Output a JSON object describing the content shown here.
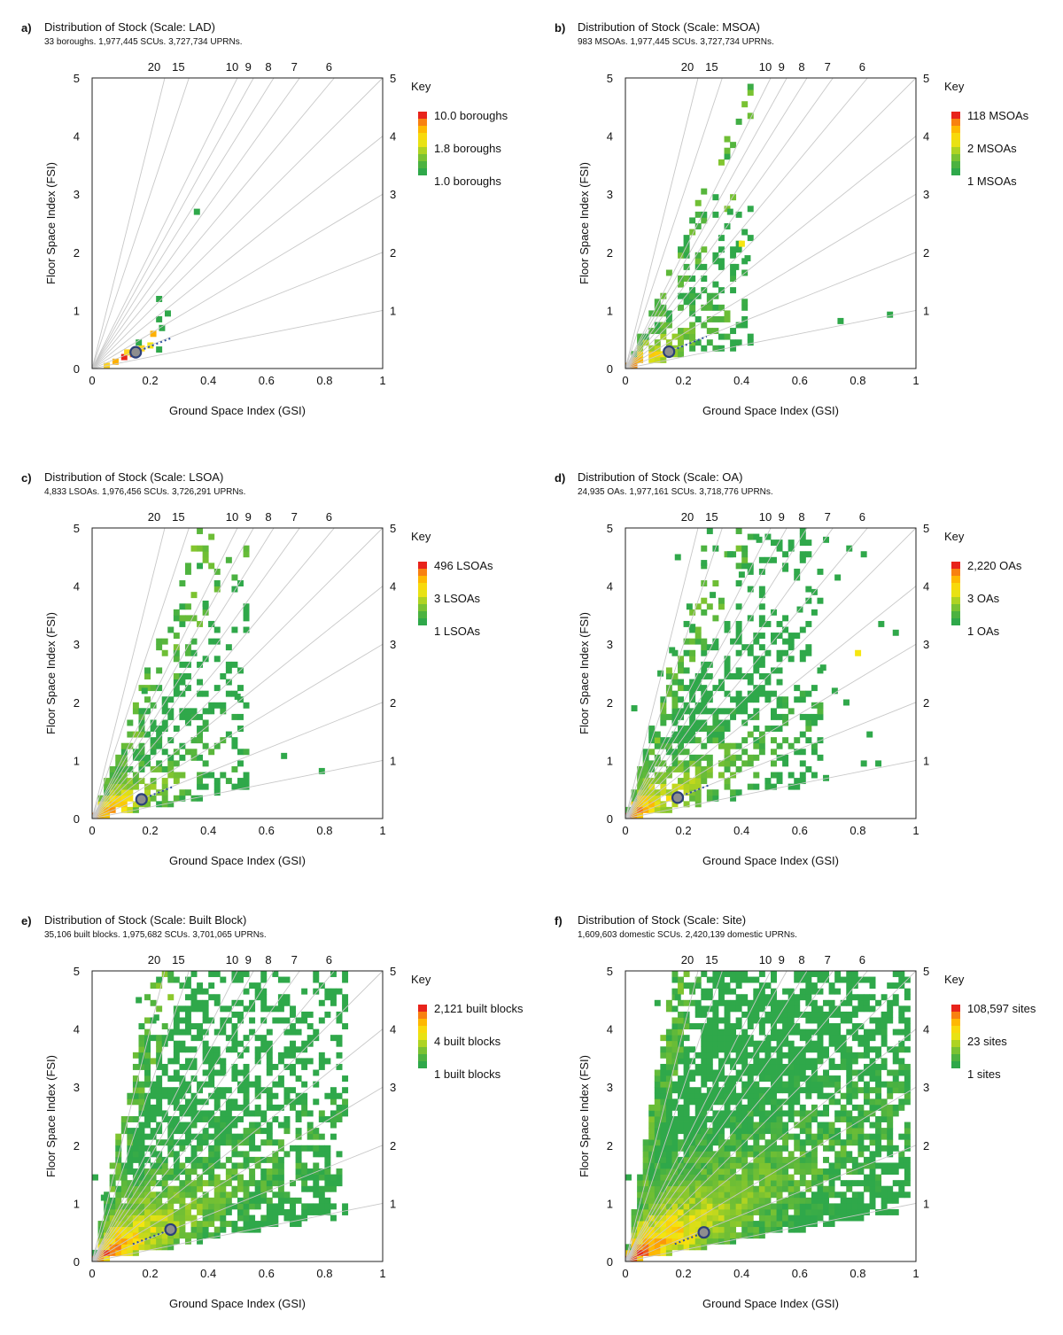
{
  "chart_data": [
    {
      "letter": "a)",
      "type": "heatmap",
      "title": "Distribution of Stock (Scale: LAD)",
      "subtitle": "33 boroughs. 1,977,445 SCUs. 3,727,734 UPRNs.",
      "xlabel": "Ground Space Index (GSI)",
      "ylabel": "Floor Space Index (FSI)",
      "xlim": [
        0,
        1
      ],
      "ylim": [
        0,
        5
      ],
      "xticks": [
        "0",
        "0.2",
        "0.4",
        "0.6",
        "0.8",
        "1"
      ],
      "yticks": [
        "0",
        "1",
        "2",
        "3",
        "4",
        "5"
      ],
      "right_ticks": [
        "1",
        "2",
        "3",
        "4",
        "5"
      ],
      "top_labels": [
        "20",
        "15",
        "10",
        "9",
        "8",
        "7",
        "6"
      ],
      "legend_title": "Key",
      "legend_labels": [
        "10.0 boroughs",
        "1.8 boroughs",
        "1.0 boroughs"
      ],
      "marker": {
        "x": 0.15,
        "y": 0.28
      },
      "trend": {
        "x0": 0.15,
        "y0": 0.28,
        "x1": 0.27,
        "y1": 0.52
      },
      "mass": {
        "angle": 0.2,
        "spread": 0.0,
        "nmax": 0.0,
        "decay": 0.0,
        "density": 0.0,
        "seed": 11
      },
      "cells": [
        [
          0.05,
          0.05,
          "#ffd320"
        ],
        [
          0.08,
          0.12,
          "#ffb000"
        ],
        [
          0.11,
          0.2,
          "#e8231b"
        ],
        [
          0.14,
          0.25,
          "#f46a1a"
        ],
        [
          0.12,
          0.28,
          "#ffd320"
        ],
        [
          0.17,
          0.35,
          "#ffd320"
        ],
        [
          0.2,
          0.4,
          "#f6e610"
        ],
        [
          0.16,
          0.45,
          "#2fa84a"
        ],
        [
          0.21,
          0.6,
          "#ffb000"
        ],
        [
          0.24,
          0.7,
          "#2fa84a"
        ],
        [
          0.26,
          0.95,
          "#2fa84a"
        ],
        [
          0.23,
          0.85,
          "#2fa84a"
        ],
        [
          0.23,
          1.2,
          "#2fa84a"
        ],
        [
          0.36,
          2.7,
          "#2fa84a"
        ],
        [
          0.23,
          0.33,
          "#2fa84a"
        ]
      ]
    },
    {
      "letter": "b)",
      "type": "heatmap",
      "title": "Distribution of Stock (Scale: MSOA)",
      "subtitle": "983 MSOAs. 1,977,445 SCUs. 3,727,734 UPRNs.",
      "xlabel": "Ground Space Index (GSI)",
      "ylabel": "Floor Space Index (FSI)",
      "xlim": [
        0,
        1
      ],
      "ylim": [
        0,
        5
      ],
      "xticks": [
        "0",
        "0.2",
        "0.4",
        "0.6",
        "0.8",
        "1"
      ],
      "yticks": [
        "0",
        "1",
        "2",
        "3",
        "4",
        "5"
      ],
      "right_ticks": [
        "1",
        "2",
        "3",
        "4",
        "5"
      ],
      "top_labels": [
        "20",
        "15",
        "10",
        "9",
        "8",
        "7",
        "6"
      ],
      "legend_title": "Key",
      "legend_labels": [
        "118 MSOAs",
        "2 MSOAs",
        "1 MSOAs"
      ],
      "marker": {
        "x": 0.15,
        "y": 0.29
      },
      "trend": {
        "x0": 0.15,
        "y0": 0.29,
        "x1": 0.28,
        "y1": 0.55
      },
      "mass": {
        "angle": 0.22,
        "spread": 0.7,
        "nmax": 0.42,
        "decay": 3.0,
        "density": 0.62,
        "seed": 23
      },
      "cells": [
        [
          0.36,
          2.7,
          "#2fa84a"
        ],
        [
          0.4,
          2.15,
          "#f6e610"
        ],
        [
          0.74,
          0.82,
          "#2fa84a"
        ],
        [
          0.91,
          0.93,
          "#2fa84a"
        ],
        [
          0.42,
          1.9,
          "#2fa84a"
        ],
        [
          0.38,
          1.75,
          "#2fa84a"
        ]
      ]
    },
    {
      "letter": "c)",
      "type": "heatmap",
      "title": "Distribution of Stock (Scale: LSOA)",
      "subtitle": "4,833 LSOAs. 1,976,456 SCUs. 3,726,291 UPRNs.",
      "xlabel": "Ground Space Index (GSI)",
      "ylabel": "Floor Space Index (FSI)",
      "xlim": [
        0,
        1
      ],
      "ylim": [
        0,
        5
      ],
      "xticks": [
        "0",
        "0.2",
        "0.4",
        "0.6",
        "0.8",
        "1"
      ],
      "yticks": [
        "0",
        "1",
        "2",
        "3",
        "4",
        "5"
      ],
      "right_ticks": [
        "1",
        "2",
        "3",
        "4",
        "5"
      ],
      "top_labels": [
        "20",
        "15",
        "10",
        "9",
        "8",
        "7",
        "6"
      ],
      "legend_title": "Key",
      "legend_labels": [
        "496 LSOAs",
        "3 LSOAs",
        "1 LSOAs"
      ],
      "marker": {
        "x": 0.17,
        "y": 0.33
      },
      "trend": {
        "x0": 0.17,
        "y0": 0.33,
        "x1": 0.28,
        "y1": 0.55
      },
      "mass": {
        "angle": 0.25,
        "spread": 0.9,
        "nmax": 0.52,
        "decay": 2.6,
        "density": 0.8,
        "seed": 37
      },
      "cells": [
        [
          0.39,
          3.7,
          "#2fa84a"
        ],
        [
          0.41,
          3.35,
          "#2fa84a"
        ],
        [
          0.66,
          1.08,
          "#2fa84a"
        ],
        [
          0.79,
          0.82,
          "#2fa84a"
        ],
        [
          0.53,
          1.95,
          "#2fa84a"
        ],
        [
          0.5,
          2.1,
          "#2fa84a"
        ],
        [
          0.47,
          2.65,
          "#2fa84a"
        ],
        [
          0.18,
          2.2,
          "#2fa84a"
        ],
        [
          0.17,
          1.85,
          "#2fa84a"
        ]
      ]
    },
    {
      "letter": "d)",
      "type": "heatmap",
      "title": "Distribution of Stock (Scale: OA)",
      "subtitle": "24,935 OAs. 1,977,161 SCUs. 3,718,776 UPRNs.",
      "xlabel": "Ground Space Index (GSI)",
      "ylabel": "Floor Space Index (FSI)",
      "xlim": [
        0,
        1
      ],
      "ylim": [
        0,
        5
      ],
      "xticks": [
        "0",
        "0.2",
        "0.4",
        "0.6",
        "0.8",
        "1"
      ],
      "yticks": [
        "0",
        "1",
        "2",
        "3",
        "4",
        "5"
      ],
      "right_ticks": [
        "1",
        "2",
        "3",
        "4",
        "5"
      ],
      "top_labels": [
        "20",
        "15",
        "10",
        "9",
        "8",
        "7",
        "6"
      ],
      "legend_title": "Key",
      "legend_labels": [
        "2,220 OAs",
        "3 OAs",
        "1 OAs"
      ],
      "marker": {
        "x": 0.18,
        "y": 0.36
      },
      "trend": {
        "x0": 0.18,
        "y0": 0.36,
        "x1": 0.29,
        "y1": 0.58
      },
      "mass": {
        "angle": 0.3,
        "spread": 1.3,
        "nmax": 0.66,
        "decay": 2.0,
        "density": 0.88,
        "seed": 51
      },
      "cells": [
        [
          0.88,
          3.35,
          "#2fa84a"
        ],
        [
          0.93,
          3.2,
          "#2fa84a"
        ],
        [
          0.8,
          2.85,
          "#f6e610"
        ],
        [
          0.82,
          0.95,
          "#2fa84a"
        ],
        [
          0.87,
          0.95,
          "#2fa84a"
        ],
        [
          0.84,
          1.45,
          "#2fa84a"
        ],
        [
          0.69,
          0.7,
          "#2fa84a"
        ],
        [
          0.18,
          4.5,
          "#2fa84a"
        ],
        [
          0.27,
          4.4,
          "#2fa84a"
        ],
        [
          0.46,
          4.8,
          "#2fa84a"
        ],
        [
          0.63,
          4.75,
          "#2fa84a"
        ],
        [
          0.69,
          4.8,
          "#2fa84a"
        ],
        [
          0.77,
          4.65,
          "#2fa84a"
        ],
        [
          0.82,
          4.55,
          "#2fa84a"
        ],
        [
          0.61,
          4.5,
          "#2fa84a"
        ],
        [
          0.55,
          4.3,
          "#2fa84a"
        ],
        [
          0.36,
          4.55,
          "#2fa84a"
        ],
        [
          0.4,
          4.2,
          "#2fa84a"
        ],
        [
          0.3,
          3.85,
          "#2fa84a"
        ],
        [
          0.22,
          3.65,
          "#2fa84a"
        ],
        [
          0.65,
          3.9,
          "#2fa84a"
        ],
        [
          0.73,
          4.15,
          "#2fa84a"
        ],
        [
          0.12,
          2.5,
          "#2fa84a"
        ],
        [
          0.16,
          2.9,
          "#2fa84a"
        ],
        [
          0.03,
          1.9,
          "#2fa84a"
        ],
        [
          0.23,
          3.3,
          "#2fa84a"
        ],
        [
          0.6,
          3.6,
          "#2fa84a"
        ],
        [
          0.68,
          2.6,
          "#2fa84a"
        ],
        [
          0.72,
          2.2,
          "#2fa84a"
        ],
        [
          0.76,
          2.0,
          "#2fa84a"
        ]
      ]
    },
    {
      "letter": "e)",
      "type": "heatmap",
      "title": "Distribution of Stock (Scale: Built Block)",
      "subtitle": "35,106 built blocks. 1,975,682 SCUs. 3,701,065 UPRNs.",
      "xlabel": "Ground Space Index (GSI)",
      "ylabel": "Floor Space Index (FSI)",
      "xlim": [
        0,
        1
      ],
      "ylim": [
        0,
        5
      ],
      "xticks": [
        "0",
        "0.2",
        "0.4",
        "0.6",
        "0.8",
        "1"
      ],
      "yticks": [
        "0",
        "1",
        "2",
        "3",
        "4",
        "5"
      ],
      "right_ticks": [
        "1",
        "2",
        "3",
        "4",
        "5"
      ],
      "top_labels": [
        "20",
        "15",
        "10",
        "9",
        "8",
        "7",
        "6"
      ],
      "legend_title": "Key",
      "legend_labels": [
        "2,121 built blocks",
        "4 built blocks",
        "1 built blocks"
      ],
      "marker": {
        "x": 0.27,
        "y": 0.55
      },
      "trend": {
        "x0": 0.14,
        "y0": 0.3,
        "x1": 0.27,
        "y1": 0.55
      },
      "mass": {
        "angle": 0.36,
        "spread": 2.0,
        "nmax": 0.86,
        "decay": 1.2,
        "density": 0.95,
        "seed": 67
      },
      "cells": [
        [
          0.16,
          4.5,
          "#2fa84a"
        ],
        [
          0.01,
          1.45,
          "#2fa84a"
        ],
        [
          0.04,
          1.1,
          "#2fa84a"
        ],
        [
          0.22,
          4.2,
          "#2fa84a"
        ],
        [
          0.31,
          3.95,
          "#2fa84a"
        ]
      ]
    },
    {
      "letter": "f)",
      "type": "heatmap",
      "title": "Distribution of Stock (Scale: Site)",
      "subtitle": "1,609,603 domestic SCUs. 2,420,139 domestic UPRNs.",
      "xlabel": "Ground Space Index (GSI)",
      "ylabel": "Floor Space Index (FSI)",
      "xlim": [
        0,
        1
      ],
      "ylim": [
        0,
        5
      ],
      "xticks": [
        "0",
        "0.2",
        "0.4",
        "0.6",
        "0.8",
        "1"
      ],
      "yticks": [
        "0",
        "1",
        "2",
        "3",
        "4",
        "5"
      ],
      "right_ticks": [
        "1",
        "2",
        "3",
        "4",
        "5"
      ],
      "top_labels": [
        "20",
        "15",
        "10",
        "9",
        "8",
        "7",
        "6"
      ],
      "legend_title": "Key",
      "legend_labels": [
        "108,597 sites",
        "23 sites",
        "1 sites"
      ],
      "marker": {
        "x": 0.27,
        "y": 0.5
      },
      "trend": {
        "x0": 0.17,
        "y0": 0.3,
        "x1": 0.27,
        "y1": 0.5
      },
      "mass": {
        "angle": 0.36,
        "spread": 2.6,
        "nmax": 0.95,
        "decay": 0.8,
        "density": 1.0,
        "seed": 83
      },
      "cells": [
        [
          0.11,
          4.45,
          "#2fa84a"
        ],
        [
          0.18,
          4.55,
          "#2fa84a"
        ],
        [
          0.01,
          1.45,
          "#2fa84a"
        ]
      ]
    }
  ]
}
